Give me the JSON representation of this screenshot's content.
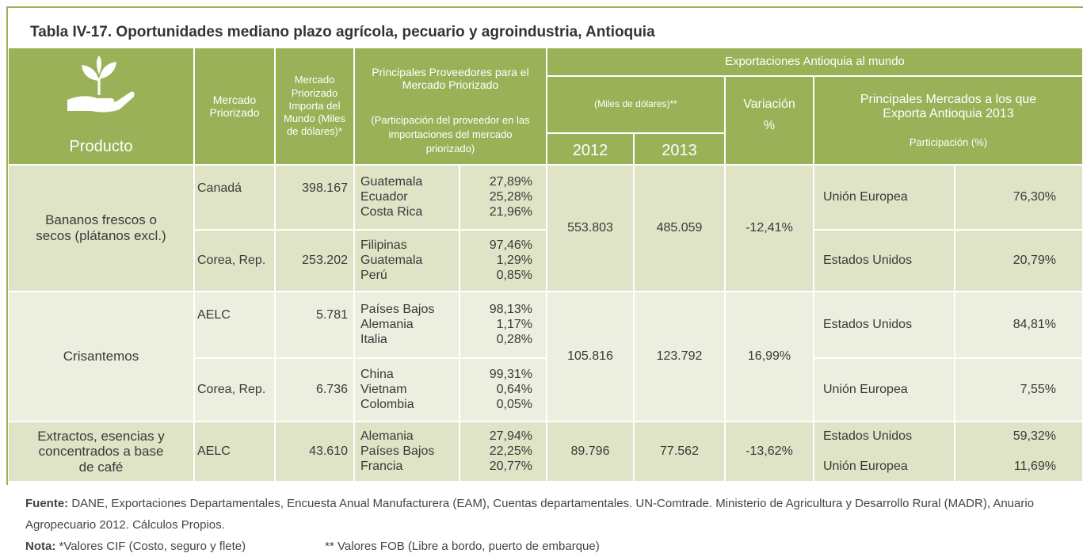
{
  "title": "Tabla IV-17. Oportunidades mediano plazo agrícola, pecuario y agroindustria, Antioquia",
  "header": {
    "producto": "Producto",
    "mercado": "Mercado Priorizado",
    "importa": "Mercado Priorizado Importa del Mundo (Miles de dólares)*",
    "proveedores": "Principales Proveedores para el Mercado Priorizado",
    "proveedores_note": "(Participación del proveedor en las importaciones del mercado priorizado)",
    "exportaciones": "Exportaciones Antioquia al mundo",
    "miles": "(Miles de dólares)**",
    "y2012": "2012",
    "y2013": "2013",
    "variacion": "Variación %",
    "mercados": "Principales Mercados a los que Exporta Antioquia 2013",
    "participacion": "Participación (%)"
  },
  "groups": [
    {
      "product": "Bananos frescos o secos (plátanos excl.)",
      "export_2012": "553.803",
      "export_2013": "485.059",
      "variacion": "-12,41%",
      "markets": [
        {
          "name": "Unión Europea",
          "share": "76,30%"
        },
        {
          "name": "Estados Unidos",
          "share": "20,79%"
        }
      ],
      "rows": [
        {
          "market": "Canadá",
          "imports": "398.167",
          "suppliers": [
            {
              "name": "Guatemala",
              "share": "27,89%"
            },
            {
              "name": "Ecuador",
              "share": "25,28%"
            },
            {
              "name": "Costa Rica",
              "share": "21,96%"
            }
          ]
        },
        {
          "market": "Corea, Rep.",
          "imports": "253.202",
          "suppliers": [
            {
              "name": "Filipinas",
              "share": "97,46%"
            },
            {
              "name": "Guatemala",
              "share": "1,29%"
            },
            {
              "name": "Perú",
              "share": "0,85%"
            }
          ]
        }
      ]
    },
    {
      "product": "Crisantemos",
      "export_2012": "105.816",
      "export_2013": "123.792",
      "variacion": "16,99%",
      "markets": [
        {
          "name": "Estados Unidos",
          "share": "84,81%"
        },
        {
          "name": "Unión Europea",
          "share": "7,55%"
        }
      ],
      "rows": [
        {
          "market": "AELC",
          "imports": "5.781",
          "suppliers": [
            {
              "name": "Países Bajos",
              "share": "98,13%"
            },
            {
              "name": "Alemania",
              "share": "1,17%"
            },
            {
              "name": "Italia",
              "share": "0,28%"
            }
          ]
        },
        {
          "market": "Corea, Rep.",
          "imports": "6.736",
          "suppliers": [
            {
              "name": "China",
              "share": "99,31%"
            },
            {
              "name": "Vietnam",
              "share": "0,64%"
            },
            {
              "name": "Colombia",
              "share": "0,05%"
            }
          ]
        }
      ]
    },
    {
      "product": "Extractos, esencias y concentrados a base de café",
      "export_2012": "89.796",
      "export_2013": "77.562",
      "variacion": "-13,62%",
      "markets": [
        {
          "name": "Estados Unidos",
          "share": "59,32%"
        },
        {
          "name": "Unión Europea",
          "share": "11,69%"
        }
      ],
      "rows": [
        {
          "market": "AELC",
          "imports": "43.610",
          "suppliers": [
            {
              "name": "Alemania",
              "share": "27,94%"
            },
            {
              "name": "Países Bajos",
              "share": "22,25%"
            },
            {
              "name": "Francia",
              "share": "20,77%"
            }
          ]
        }
      ]
    }
  ],
  "footer": {
    "fuente_label": "Fuente:",
    "fuente": "DANE, Exportaciones Departamentales, Encuesta Anual Manufacturera (EAM), Cuentas departamentales. UN-Comtrade. Ministerio de Agricultura y Desarrollo Rural (MADR), Anuario Agropecuario 2012.  Cálculos Propios.",
    "nota_label": "Nota:",
    "nota1": "*Valores CIF (Costo, seguro y flete)",
    "nota2": "** Valores FOB (Libre a bordo, puerto de embarque)"
  }
}
